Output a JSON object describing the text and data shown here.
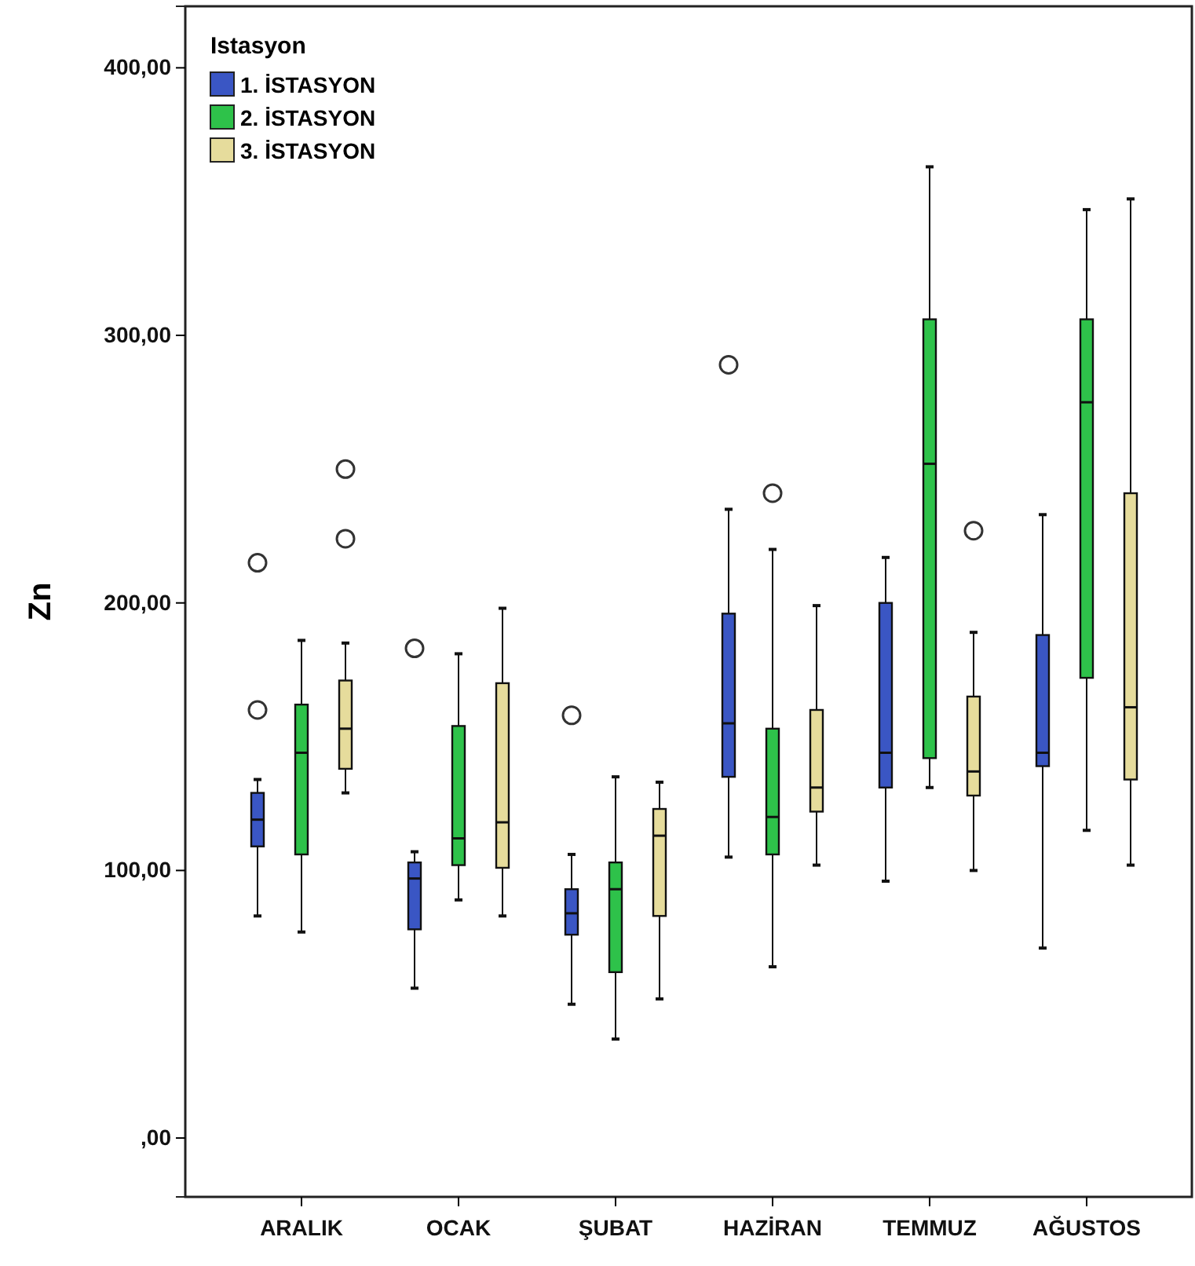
{
  "chart_data": {
    "type": "box",
    "ylabel": "Zn",
    "legend_title": "Istasyon",
    "legend": "top left",
    "categories": [
      "ARALIK",
      "OCAK",
      "ŞUBAT",
      "HAZİRAN",
      "TEMMUZ",
      "AĞUSTOS"
    ],
    "ylim": [
      -22,
      423
    ],
    "yticks": [
      {
        "value": 0,
        "label": ",00"
      },
      {
        "value": 100,
        "label": "100,00"
      },
      {
        "value": 200,
        "label": "200,00"
      },
      {
        "value": 300,
        "label": "300,00"
      },
      {
        "value": 400,
        "label": "400,00"
      }
    ],
    "grid": false,
    "series": [
      {
        "name": "1. İSTASYON",
        "color": "#3a56c4",
        "boxes": [
          {
            "low": 83,
            "q1": 109,
            "median": 119,
            "q3": 129,
            "high": 134,
            "outliers": [
              160,
              215
            ]
          },
          {
            "low": 56,
            "q1": 78,
            "median": 97,
            "q3": 103,
            "high": 107,
            "outliers": [
              183
            ]
          },
          {
            "low": 50,
            "q1": 76,
            "median": 84,
            "q3": 93,
            "high": 106,
            "outliers": [
              158
            ]
          },
          {
            "low": 105,
            "q1": 135,
            "median": 155,
            "q3": 196,
            "high": 235,
            "outliers": [
              289
            ]
          },
          {
            "low": 96,
            "q1": 131,
            "median": 144,
            "q3": 200,
            "high": 217
          },
          {
            "low": 71,
            "q1": 139,
            "median": 144,
            "q3": 188,
            "high": 233
          }
        ]
      },
      {
        "name": "2. İSTASYON",
        "color": "#2ec24a",
        "boxes": [
          {
            "low": 77,
            "q1": 106,
            "median": 144,
            "q3": 162,
            "high": 186
          },
          {
            "low": 89,
            "q1": 102,
            "median": 112,
            "q3": 154,
            "high": 181
          },
          {
            "low": 37,
            "q1": 62,
            "median": 93,
            "q3": 103,
            "high": 135
          },
          {
            "low": 64,
            "q1": 106,
            "median": 120,
            "q3": 153,
            "high": 220,
            "outliers": [
              241
            ]
          },
          {
            "low": 131,
            "q1": 142,
            "median": 252,
            "q3": 306,
            "high": 363
          },
          {
            "low": 115,
            "q1": 172,
            "median": 275,
            "q3": 306,
            "high": 347
          }
        ]
      },
      {
        "name": "3. İSTASYON",
        "color": "#e6dc9c",
        "boxes": [
          {
            "low": 129,
            "q1": 138,
            "median": 153,
            "q3": 171,
            "high": 185,
            "outliers": [
              224,
              250
            ]
          },
          {
            "low": 83,
            "q1": 101,
            "median": 118,
            "q3": 170,
            "high": 198
          },
          {
            "low": 52,
            "q1": 83,
            "median": 113,
            "q3": 123,
            "high": 133
          },
          {
            "low": 102,
            "q1": 122,
            "median": 131,
            "q3": 160,
            "high": 199
          },
          {
            "low": 100,
            "q1": 128,
            "median": 137,
            "q3": 165,
            "high": 189,
            "outliers": [
              227
            ]
          },
          {
            "low": 102,
            "q1": 134,
            "median": 161,
            "q3": 241,
            "high": 351
          }
        ]
      }
    ]
  }
}
